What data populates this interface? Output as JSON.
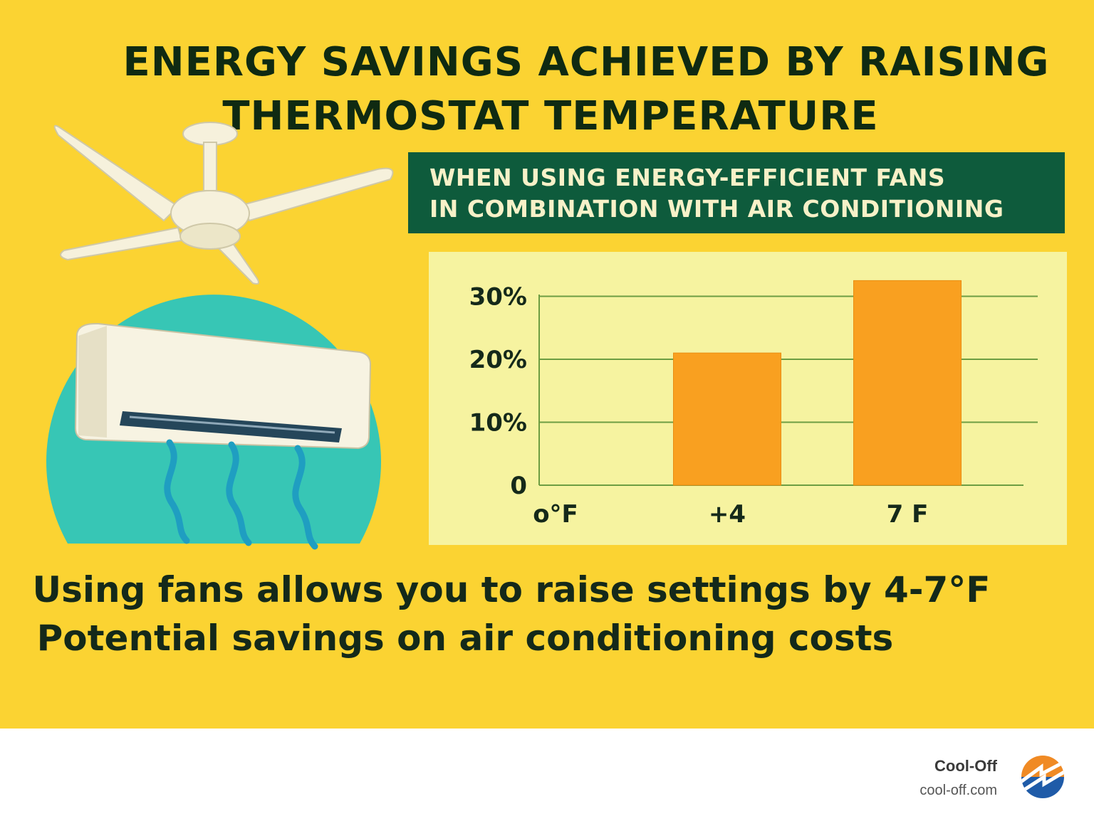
{
  "title": {
    "line1": "ENERGY SAVINGS ACHIEVED BY RAISING",
    "line2": "THERMOSTAT TEMPERATURE"
  },
  "subtitle": {
    "line1": "WHEN USING ENERGY-EFFICIENT FANS",
    "line2": "IN COMBINATION WITH AIR CONDITIONING"
  },
  "illustration": {
    "icons": [
      "ceiling-fan-icon",
      "air-conditioner-icon",
      "airflow-waves-icon"
    ]
  },
  "chart_data": {
    "type": "bar",
    "categories": [
      "o°F",
      "+4",
      "7 F"
    ],
    "values": [
      0,
      21,
      32.5
    ],
    "ylim": [
      0,
      30
    ],
    "yticks": [
      {
        "value": 0,
        "label": "0"
      },
      {
        "value": 10,
        "label": "10%"
      },
      {
        "value": 20,
        "label": "20%"
      },
      {
        "value": 30,
        "label": "30%"
      }
    ],
    "grid": true,
    "legend": "none",
    "bar_color": "#f9a020",
    "grid_color": "#6d9d42",
    "panel_color": "#f6f3a0",
    "title": "",
    "xlabel": "",
    "ylabel": ""
  },
  "bottom_text": {
    "line1": "Using fans allows you to raise settings by 4-7°F",
    "line2": "Potential savings on air conditioning costs"
  },
  "footer": {
    "brand_name": "Cool-Off",
    "brand_url": "cool-off.com",
    "logo_icon": "cool-off-logo-icon"
  },
  "colors": {
    "background": "#fbd332",
    "title_text": "#0f2a12",
    "subtitle_box": "#0e5b3c",
    "subtitle_text": "#f7f1c8",
    "illustration_circle": "#37c6b5"
  }
}
